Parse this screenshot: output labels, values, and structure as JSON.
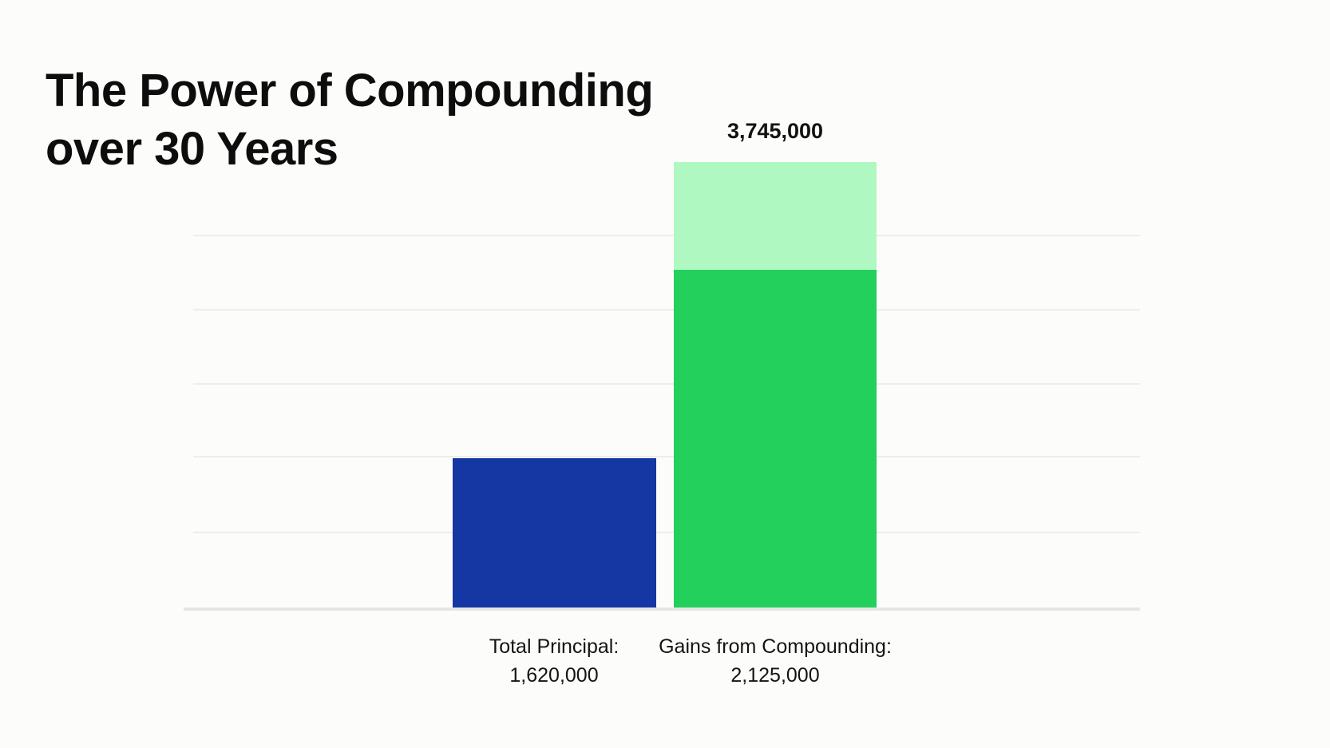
{
  "page": {
    "background_color": "#fcfcfa"
  },
  "title": {
    "line1": "The Power of Compounding",
    "line2": "over 30 Years",
    "color": "#0d0d0d"
  },
  "chart_data": {
    "type": "bar",
    "title": "The Power of Compounding over 30 Years",
    "categories": [
      "Total Principal:",
      "Gains from Compounding:"
    ],
    "values": [
      1620000,
      2125000
    ],
    "value_labels": [
      "1,620,000",
      "2,125,000"
    ],
    "total_value": 3745000,
    "total_label": "3,745,000",
    "ylim": [
      0,
      3745000
    ],
    "grid": "horizontal",
    "legend": "none",
    "xlabel": "",
    "ylabel": "",
    "bars": [
      {
        "category": "Total Principal:",
        "value": 1620000,
        "value_label": "1,620,000",
        "color": "#1537a4"
      },
      {
        "category": "Gains from Compounding:",
        "value": 2125000,
        "value_label": "2,125,000",
        "stack_total_value": 3745000,
        "stack_total_label": "3,745,000",
        "color_dark": "#23d05c",
        "color_light": "#b0f8c2"
      }
    ],
    "colors": {
      "principal": "#1537a4",
      "gains_dark": "#23d05c",
      "gains_light": "#b0f8c2",
      "gridline": "#ededea",
      "axis": "#e6e6e2",
      "text": "#141414"
    },
    "annotations": [
      {
        "text": "3,745,000",
        "position": "above gains bar"
      }
    ]
  }
}
